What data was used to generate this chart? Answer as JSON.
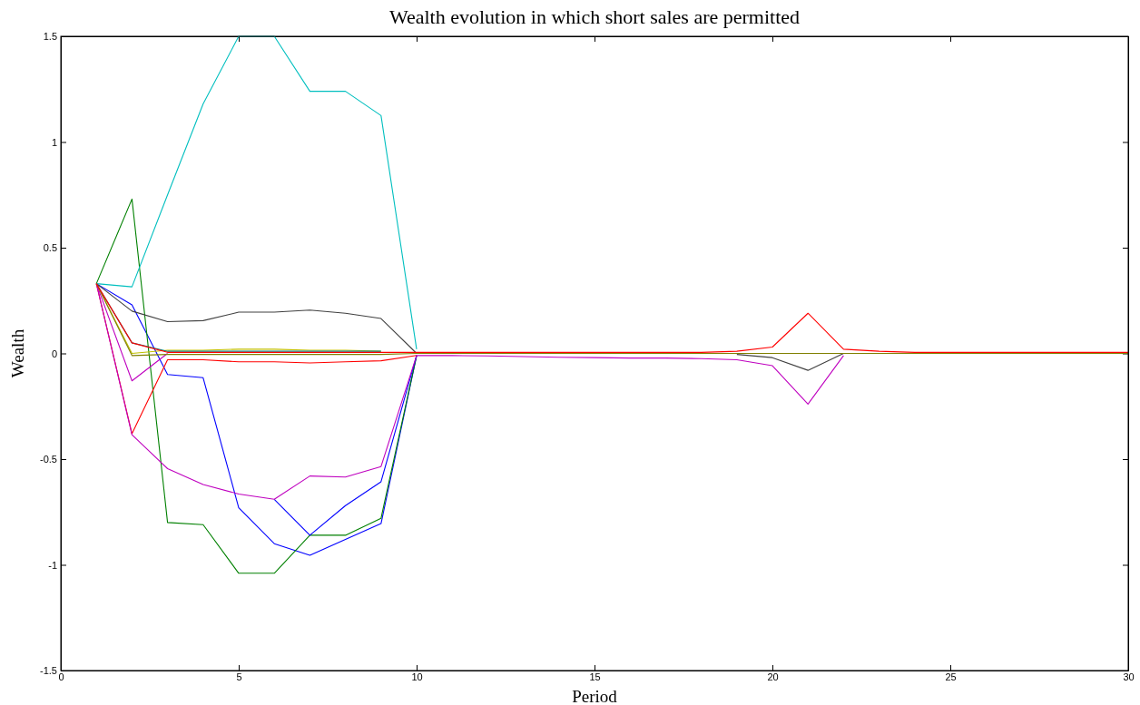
{
  "chart_data": {
    "type": "line",
    "title": "Wealth evolution in which short sales are permitted",
    "xlabel": "Period",
    "ylabel": "Wealth",
    "x": [
      1,
      2,
      3,
      4,
      5,
      6,
      7,
      8,
      9,
      10,
      11,
      12,
      13,
      14,
      15,
      16,
      17,
      18,
      19,
      20,
      21,
      22,
      23,
      24,
      25,
      26,
      27,
      28,
      29,
      30
    ],
    "xlim": [
      0,
      30
    ],
    "xticks": [
      0,
      5,
      10,
      15,
      20,
      25,
      30
    ],
    "ylim": [
      -1.5,
      1.5
    ],
    "yticks": [
      -1.5,
      -1,
      -0.5,
      0,
      0.5,
      1,
      1.5
    ],
    "marker": "none",
    "line_style": "solid",
    "series": [
      {
        "color": "#0000ff",
        "values": [
          0.33,
          0.23,
          -0.1,
          -0.115,
          -0.73,
          -0.9,
          -0.955,
          -0.88,
          -0.805,
          -0.01,
          null,
          null,
          null,
          null,
          null,
          null,
          null,
          null,
          null,
          null,
          null,
          null,
          null,
          null,
          null,
          null,
          null,
          null,
          null,
          null
        ]
      },
      {
        "color": "#008000",
        "values": [
          0.33,
          0.73,
          -0.8,
          -0.81,
          -1.04,
          -1.04,
          -0.86,
          -0.86,
          -0.78,
          -0.01,
          null,
          null,
          null,
          null,
          null,
          null,
          null,
          null,
          null,
          null,
          null,
          null,
          null,
          null,
          null,
          null,
          null,
          null,
          null,
          null
        ]
      },
      {
        "color": "#ff0000",
        "values": [
          0.33,
          -0.38,
          -0.03,
          -0.03,
          -0.04,
          -0.04,
          -0.045,
          -0.04,
          -0.035,
          -0.01,
          null,
          null,
          null,
          null,
          null,
          null,
          null,
          null,
          null,
          null,
          null,
          null,
          null,
          null,
          null,
          null,
          null,
          null,
          null,
          null
        ]
      },
      {
        "color": "#00bfbf",
        "values": [
          0.33,
          0.315,
          0.75,
          1.18,
          1.5,
          1.5,
          1.24,
          1.24,
          1.125,
          0.02,
          null,
          null,
          null,
          null,
          null,
          null,
          null,
          null,
          null,
          null,
          null,
          null,
          null,
          null,
          null,
          null,
          null,
          null,
          null,
          null
        ]
      },
      {
        "color": "#0000ff",
        "values": [
          null,
          null,
          null,
          null,
          null,
          -0.69,
          -0.86,
          -0.72,
          -0.607,
          -0.01,
          null,
          null,
          null,
          null,
          null,
          null,
          null,
          null,
          null,
          null,
          null,
          null,
          null,
          null,
          null,
          null,
          null,
          null,
          null,
          null
        ]
      },
      {
        "color": "#bf00bf",
        "values": [
          0.33,
          -0.385,
          -0.545,
          -0.62,
          -0.665,
          -0.69,
          -0.58,
          -0.585,
          -0.535,
          -0.01,
          null,
          null,
          null,
          null,
          null,
          null,
          null,
          null,
          null,
          null,
          null,
          null,
          null,
          null,
          null,
          null,
          null,
          null,
          null,
          null
        ]
      },
      {
        "color": "#bfbf00",
        "values": [
          0.33,
          0,
          0.015,
          0.015,
          0.02,
          0.02,
          0.015,
          0.015,
          0.01,
          null,
          null,
          null,
          null,
          null,
          null,
          null,
          null,
          null,
          null,
          null,
          null,
          null,
          null,
          null,
          null,
          null,
          null,
          null,
          null,
          null
        ]
      },
      {
        "color": "#404040",
        "values": [
          0.33,
          0.2,
          0.15,
          0.155,
          0.195,
          0.195,
          0.205,
          0.19,
          0.165,
          0,
          null,
          null,
          null,
          null,
          null,
          null,
          null,
          null,
          -0.005,
          -0.02,
          -0.08,
          0,
          null,
          null,
          null,
          null,
          null,
          null,
          null,
          null
        ]
      },
      {
        "color": "#bf00bf",
        "values": [
          0.33,
          -0.13,
          0,
          null,
          null,
          null,
          null,
          null,
          null,
          -0.01,
          -0.01,
          -0.012,
          -0.015,
          -0.018,
          -0.02,
          -0.022,
          -0.022,
          -0.025,
          -0.03,
          -0.058,
          -0.24,
          -0.01,
          null,
          null,
          null,
          null,
          null,
          null,
          null,
          null
        ]
      },
      {
        "color": "#008080",
        "values": [
          0.33,
          0.05,
          0.01,
          0.01,
          0.01,
          0.01,
          0.01,
          0.01,
          0.01,
          null,
          null,
          null,
          null,
          null,
          null,
          null,
          null,
          null,
          null,
          null,
          null,
          null,
          null,
          null,
          null,
          null,
          null,
          null,
          null,
          null
        ]
      },
      {
        "color": "#808000",
        "values": [
          0.33,
          -0.01,
          -0.005,
          -0.005,
          -0.005,
          -0.005,
          -0.005,
          -0.005,
          -0.005,
          0,
          0,
          0,
          0,
          0,
          0,
          0,
          0,
          0,
          0,
          0,
          0,
          0,
          0,
          0,
          0,
          0,
          0,
          0,
          0,
          0
        ]
      },
      {
        "color": "#ff0000",
        "values": [
          0.33,
          0.05,
          0.005,
          0.005,
          0.005,
          0.005,
          0.005,
          0.005,
          0.005,
          0.005,
          0.005,
          0.005,
          0.005,
          0.005,
          0.005,
          0.005,
          0.005,
          0.005,
          0.01,
          0.03,
          0.19,
          0.02,
          0.01,
          0.005,
          0.005,
          0.005,
          0.005,
          0.005,
          0.005,
          0.005
        ]
      }
    ]
  }
}
